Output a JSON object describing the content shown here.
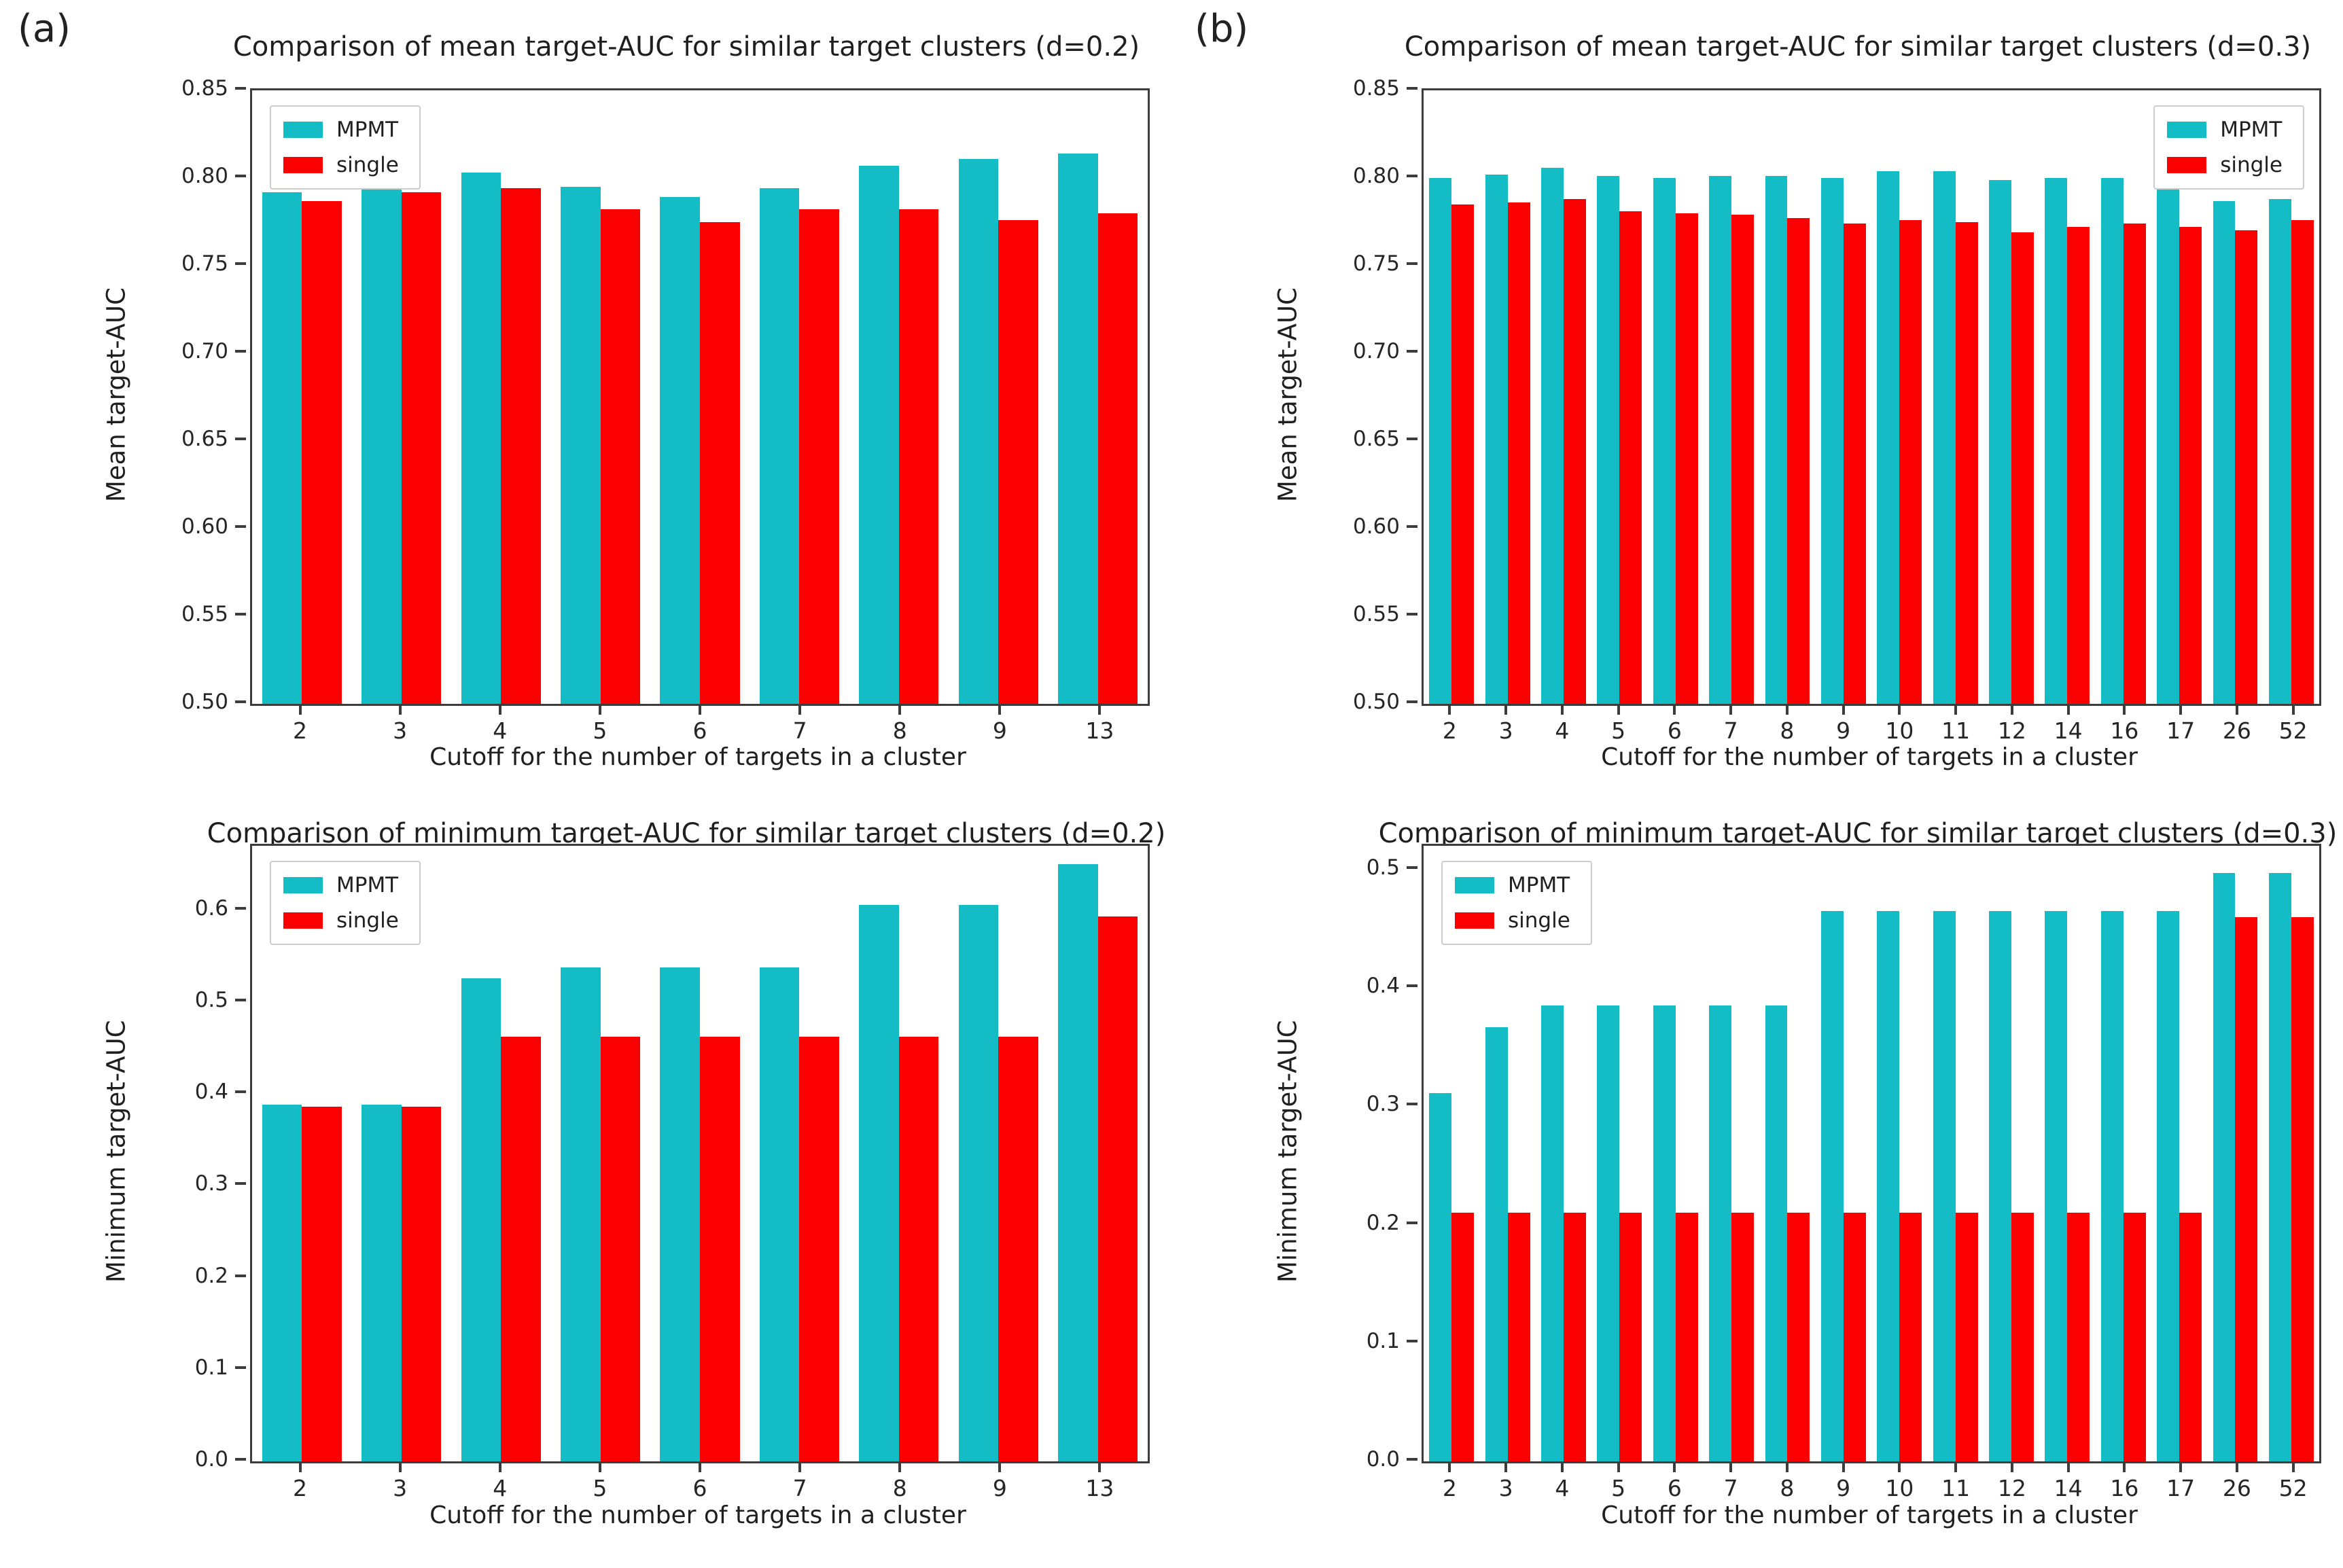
{
  "figure": {
    "panel_a_label": "(a)",
    "panel_b_label": "(b)"
  },
  "colors": {
    "mpmt": "#14bdc6",
    "single": "#fb0000",
    "axis": "#3c3c3c"
  },
  "legend": {
    "mpmt_label": "MPMT",
    "single_label": "single"
  },
  "chart_data": [
    {
      "type": "bar",
      "title": "Comparison of mean target-AUC for similar target clusters (d=0.2)",
      "xlabel": "Cutoff for the number of targets in a cluster",
      "ylabel": "Mean target-AUC",
      "ylim": [
        0.5,
        0.85
      ],
      "yticks": [
        "0.85",
        "0.80",
        "0.75",
        "0.70",
        "0.65",
        "0.60",
        "0.55",
        "0.50"
      ],
      "grid": false,
      "legend_position": "upper-left",
      "categories": [
        "2",
        "3",
        "4",
        "5",
        "6",
        "7",
        "8",
        "9",
        "13"
      ],
      "series": [
        {
          "name": "MPMT",
          "values": [
            0.792,
            0.795,
            0.803,
            0.795,
            0.789,
            0.794,
            0.807,
            0.811,
            0.814
          ]
        },
        {
          "name": "single",
          "values": [
            0.787,
            0.792,
            0.794,
            0.782,
            0.775,
            0.782,
            0.782,
            0.776,
            0.78
          ]
        }
      ]
    },
    {
      "type": "bar",
      "title": "Comparison of mean target-AUC for similar target clusters (d=0.3)",
      "xlabel": "Cutoff for the number of targets in a cluster",
      "ylabel": "Mean target-AUC",
      "ylim": [
        0.5,
        0.85
      ],
      "yticks": [
        "0.85",
        "0.80",
        "0.75",
        "0.70",
        "0.65",
        "0.60",
        "0.55",
        "0.50"
      ],
      "grid": false,
      "legend_position": "upper-right",
      "categories": [
        "2",
        "3",
        "4",
        "5",
        "6",
        "7",
        "8",
        "9",
        "10",
        "11",
        "12",
        "14",
        "16",
        "17",
        "26",
        "52"
      ],
      "series": [
        {
          "name": "MPMT",
          "values": [
            0.8,
            0.802,
            0.806,
            0.801,
            0.8,
            0.801,
            0.801,
            0.8,
            0.804,
            0.804,
            0.799,
            0.8,
            0.8,
            0.794,
            0.787,
            0.788
          ]
        },
        {
          "name": "single",
          "values": [
            0.785,
            0.786,
            0.788,
            0.781,
            0.78,
            0.779,
            0.777,
            0.774,
            0.776,
            0.775,
            0.769,
            0.772,
            0.774,
            0.772,
            0.77,
            0.776
          ]
        }
      ]
    },
    {
      "type": "bar",
      "title": "Comparison of minimum target-AUC for similar target clusters (d=0.2)",
      "xlabel": "Cutoff for the number of targets in a cluster",
      "ylabel": "Minimum target-AUC",
      "ylim": [
        0.0,
        0.67
      ],
      "yticks": [
        "0.6",
        "0.5",
        "0.4",
        "0.3",
        "0.2",
        "0.1",
        "0.0"
      ],
      "grid": false,
      "legend_position": "upper-left",
      "categories": [
        "2",
        "3",
        "4",
        "5",
        "6",
        "7",
        "8",
        "9",
        "13"
      ],
      "series": [
        {
          "name": "MPMT",
          "values": [
            0.388,
            0.388,
            0.526,
            0.538,
            0.538,
            0.538,
            0.606,
            0.606,
            0.65
          ]
        },
        {
          "name": "single",
          "values": [
            0.386,
            0.386,
            0.462,
            0.462,
            0.462,
            0.462,
            0.462,
            0.462,
            0.593
          ]
        }
      ]
    },
    {
      "type": "bar",
      "title": "Comparison of minimum target-AUC for similar target clusters (d=0.3)",
      "xlabel": "Cutoff for the number of targets in a cluster",
      "ylabel": "Minimum target-AUC",
      "ylim": [
        0.0,
        0.52
      ],
      "yticks": [
        "0.5",
        "0.4",
        "0.3",
        "0.2",
        "0.1",
        "0.0"
      ],
      "grid": false,
      "legend_position": "upper-left",
      "categories": [
        "2",
        "3",
        "4",
        "5",
        "6",
        "7",
        "8",
        "9",
        "10",
        "11",
        "12",
        "14",
        "16",
        "17",
        "26",
        "52"
      ],
      "series": [
        {
          "name": "MPMT",
          "values": [
            0.311,
            0.367,
            0.385,
            0.385,
            0.385,
            0.385,
            0.385,
            0.465,
            0.465,
            0.465,
            0.465,
            0.465,
            0.465,
            0.465,
            0.497,
            0.497
          ]
        },
        {
          "name": "single",
          "values": [
            0.21,
            0.21,
            0.21,
            0.21,
            0.21,
            0.21,
            0.21,
            0.21,
            0.21,
            0.21,
            0.21,
            0.21,
            0.21,
            0.21,
            0.46,
            0.46
          ]
        }
      ]
    }
  ]
}
